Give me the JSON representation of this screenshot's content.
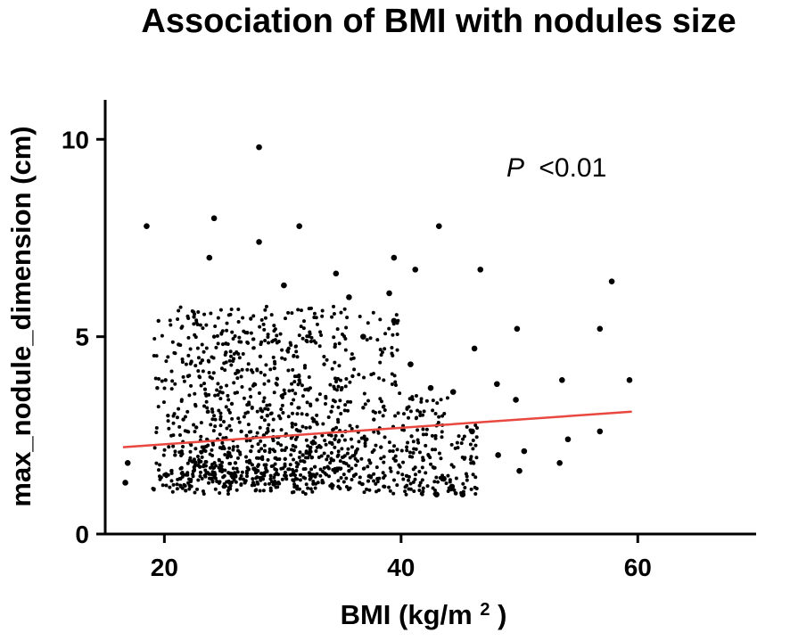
{
  "chart_data": {
    "type": "scatter",
    "title": "Association of BMI with nodules size",
    "xlabel_main": "BMI (kg/m",
    "xlabel_sup": "2",
    "xlabel_end": ")",
    "ylabel": "max_nodule_dimension (cm)",
    "xlim": [
      15,
      70
    ],
    "ylim": [
      0,
      11
    ],
    "xticks": [
      20,
      40,
      60
    ],
    "xtick_labels": [
      "20",
      "40",
      "60"
    ],
    "yticks": [
      0,
      5,
      10
    ],
    "ytick_labels": [
      "0",
      "5",
      "10"
    ],
    "grid": false,
    "annotation": {
      "prefix": "P",
      "text": "<0.01"
    },
    "colors": {
      "points": "#000000",
      "trend": "#e8483f",
      "axis": "#000000"
    },
    "trend_line": {
      "x": [
        16.5,
        59.5
      ],
      "y": [
        2.2,
        3.1
      ]
    },
    "highlighted_points": [
      {
        "x": 28.0,
        "y": 9.8
      },
      {
        "x": 18.5,
        "y": 7.8
      },
      {
        "x": 24.2,
        "y": 8.0
      },
      {
        "x": 31.4,
        "y": 7.8
      },
      {
        "x": 43.2,
        "y": 7.8
      },
      {
        "x": 28.0,
        "y": 7.4
      },
      {
        "x": 23.8,
        "y": 7.0
      },
      {
        "x": 39.4,
        "y": 7.0
      },
      {
        "x": 41.2,
        "y": 6.7
      },
      {
        "x": 46.7,
        "y": 6.7
      },
      {
        "x": 57.8,
        "y": 6.4
      },
      {
        "x": 34.5,
        "y": 6.6
      },
      {
        "x": 30.1,
        "y": 6.3
      },
      {
        "x": 39.0,
        "y": 6.1
      },
      {
        "x": 56.8,
        "y": 5.2
      },
      {
        "x": 49.8,
        "y": 5.2
      },
      {
        "x": 46.2,
        "y": 4.7
      },
      {
        "x": 59.3,
        "y": 3.9
      },
      {
        "x": 53.6,
        "y": 3.9
      },
      {
        "x": 48.1,
        "y": 3.8
      },
      {
        "x": 44.4,
        "y": 3.6
      },
      {
        "x": 49.7,
        "y": 3.4
      },
      {
        "x": 56.8,
        "y": 2.6
      },
      {
        "x": 54.1,
        "y": 2.4
      },
      {
        "x": 50.4,
        "y": 2.1
      },
      {
        "x": 50.0,
        "y": 1.6
      },
      {
        "x": 53.4,
        "y": 1.8
      },
      {
        "x": 48.2,
        "y": 2.0
      },
      {
        "x": 16.7,
        "y": 1.3
      },
      {
        "x": 16.9,
        "y": 1.8
      },
      {
        "x": 45.2,
        "y": 1.0
      },
      {
        "x": 44.3,
        "y": 1.2
      },
      {
        "x": 43.0,
        "y": 1.0
      },
      {
        "x": 43.6,
        "y": 1.4
      },
      {
        "x": 46.0,
        "y": 2.6
      },
      {
        "x": 42.5,
        "y": 3.7
      },
      {
        "x": 40.8,
        "y": 4.3
      },
      {
        "x": 39.4,
        "y": 5.4
      },
      {
        "x": 36.8,
        "y": 5.0
      },
      {
        "x": 35.6,
        "y": 6.0
      }
    ],
    "cluster_points": [
      {
        "x": 19.4,
        "y": 3.7
      },
      {
        "x": 19.5,
        "y": 5.4
      },
      {
        "x": 20.0,
        "y": 1.5
      },
      {
        "x": 20.1,
        "y": 3.9
      },
      {
        "x": 20.3,
        "y": 3.0
      },
      {
        "x": 20.6,
        "y": 1.6
      },
      {
        "x": 20.9,
        "y": 2.0
      },
      {
        "x": 21.2,
        "y": 4.8
      },
      {
        "x": 21.6,
        "y": 2.9
      },
      {
        "x": 21.8,
        "y": 1.1
      },
      {
        "x": 22.0,
        "y": 4.0
      },
      {
        "x": 22.2,
        "y": 2.3
      },
      {
        "x": 22.5,
        "y": 5.5
      },
      {
        "x": 22.7,
        "y": 2.7
      },
      {
        "x": 23.0,
        "y": 1.7
      },
      {
        "x": 23.2,
        "y": 4.4
      },
      {
        "x": 23.4,
        "y": 2.2
      },
      {
        "x": 23.7,
        "y": 3.1
      },
      {
        "x": 24.0,
        "y": 1.4
      },
      {
        "x": 24.2,
        "y": 5.0
      },
      {
        "x": 24.5,
        "y": 2.4
      },
      {
        "x": 24.7,
        "y": 3.6
      },
      {
        "x": 25.0,
        "y": 1.2
      },
      {
        "x": 25.2,
        "y": 4.6
      },
      {
        "x": 25.4,
        "y": 2.0
      },
      {
        "x": 25.7,
        "y": 3.3
      },
      {
        "x": 26.0,
        "y": 1.8
      },
      {
        "x": 26.2,
        "y": 4.1
      },
      {
        "x": 26.5,
        "y": 2.6
      },
      {
        "x": 26.8,
        "y": 1.3
      },
      {
        "x": 27.0,
        "y": 5.1
      },
      {
        "x": 27.3,
        "y": 2.1
      },
      {
        "x": 27.6,
        "y": 3.8
      },
      {
        "x": 27.9,
        "y": 1.6
      },
      {
        "x": 28.1,
        "y": 4.5
      },
      {
        "x": 28.4,
        "y": 2.5
      },
      {
        "x": 28.7,
        "y": 3.0
      },
      {
        "x": 29.0,
        "y": 1.1
      },
      {
        "x": 29.3,
        "y": 4.2
      },
      {
        "x": 29.6,
        "y": 2.3
      },
      {
        "x": 29.9,
        "y": 3.5
      },
      {
        "x": 30.2,
        "y": 1.9
      },
      {
        "x": 30.5,
        "y": 4.7
      },
      {
        "x": 30.8,
        "y": 2.8
      },
      {
        "x": 31.1,
        "y": 1.4
      },
      {
        "x": 31.4,
        "y": 3.9
      },
      {
        "x": 31.7,
        "y": 2.0
      },
      {
        "x": 32.0,
        "y": 4.9
      },
      {
        "x": 32.3,
        "y": 2.7
      },
      {
        "x": 32.6,
        "y": 1.5
      },
      {
        "x": 32.9,
        "y": 3.4
      },
      {
        "x": 33.2,
        "y": 2.2
      },
      {
        "x": 33.5,
        "y": 4.3
      },
      {
        "x": 33.8,
        "y": 1.7
      },
      {
        "x": 34.1,
        "y": 3.1
      },
      {
        "x": 34.4,
        "y": 2.4
      },
      {
        "x": 34.7,
        "y": 1.2
      },
      {
        "x": 35.0,
        "y": 3.7
      },
      {
        "x": 35.3,
        "y": 2.6
      },
      {
        "x": 35.6,
        "y": 1.6
      },
      {
        "x": 35.9,
        "y": 4.0
      },
      {
        "x": 36.2,
        "y": 2.1
      },
      {
        "x": 36.5,
        "y": 1.3
      },
      {
        "x": 36.8,
        "y": 3.2
      },
      {
        "x": 37.1,
        "y": 2.4
      },
      {
        "x": 37.4,
        "y": 1.8
      },
      {
        "x": 37.7,
        "y": 2.9
      },
      {
        "x": 38.0,
        "y": 1.4
      },
      {
        "x": 38.3,
        "y": 2.2
      },
      {
        "x": 38.6,
        "y": 1.2
      }
    ]
  }
}
